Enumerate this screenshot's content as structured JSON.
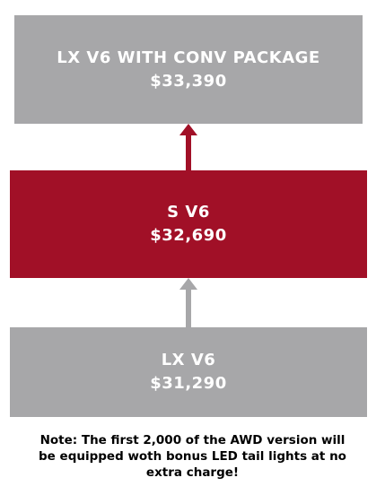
{
  "colors": {
    "gray_box": "#a7a7a9",
    "red_box": "#a11027",
    "upper_arrow": "#a11027",
    "lower_arrow": "#a7a7a9",
    "text_light": "#ffffff",
    "text_dark": "#000000"
  },
  "tiers": [
    {
      "name": "LX V6 WITH CONV PACKAGE",
      "price": "$33,390"
    },
    {
      "name": "S V6",
      "price": "$32,690"
    },
    {
      "name": "LX V6",
      "price": "$31,290"
    }
  ],
  "connections": [
    {
      "from": "LX V6",
      "to": "S V6",
      "icon": "arrow-up-icon"
    },
    {
      "from": "S V6",
      "to": "LX V6 WITH CONV PACKAGE",
      "icon": "arrow-up-icon"
    }
  ],
  "note": {
    "lines": [
      "Note: The first 2,000 of the AWD version will",
      "be equipped woth bonus LED tail lights at no",
      "extra charge!"
    ]
  }
}
